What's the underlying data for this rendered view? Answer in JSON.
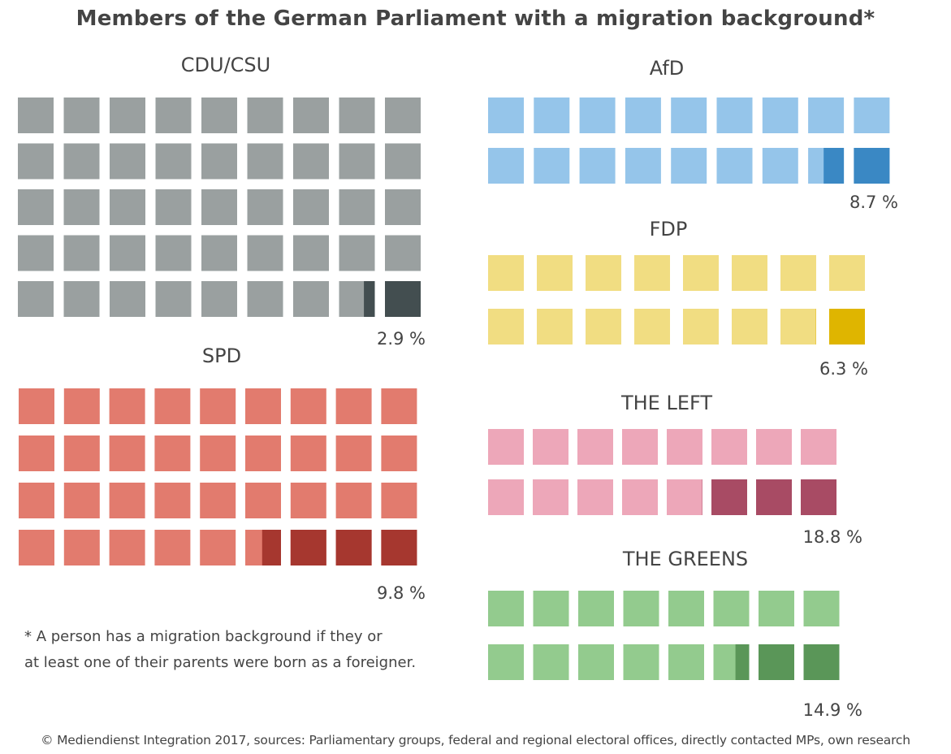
{
  "title": "Members of the German Parliament with a migration background*",
  "footnote": {
    "line1": "* A person has a migration background if they or",
    "line2": "at least one of their parents were born as a foreigner."
  },
  "source": "© Mediendienst Integration 2017, sources: Parliamentary groups, federal and regional electoral offices, directly contacted MPs, own research",
  "chart_data": {
    "type": "waffle",
    "title": "Members of the German Parliament with a migration background*",
    "unit": "%",
    "parties": [
      {
        "name": "CDU/CSU",
        "label": "CDU/CSU",
        "value": 2.9,
        "value_label": "2.9 %",
        "squares": 45,
        "columns": 9,
        "rows": 5,
        "base_color": "#9aa0a0",
        "highlight_color": "#434e50"
      },
      {
        "name": "SPD",
        "label": "SPD",
        "value": 9.8,
        "value_label": "9.8 %",
        "squares": 36,
        "columns": 9,
        "rows": 4,
        "base_color": "#e27b6e",
        "highlight_color": "#a6372f"
      },
      {
        "name": "AfD",
        "label": "AfD",
        "value": 8.7,
        "value_label": "8.7 %",
        "squares": 18,
        "columns": 9,
        "rows": 2,
        "base_color": "#95c5ea",
        "highlight_color": "#3a88c4"
      },
      {
        "name": "FDP",
        "label": "FDP",
        "value": 6.3,
        "value_label": "6.3 %",
        "squares": 16,
        "columns": 8,
        "rows": 2,
        "base_color": "#f1dd82",
        "highlight_color": "#dfb500"
      },
      {
        "name": "THE LEFT",
        "label": "THE LEFT",
        "value": 18.8,
        "value_label": "18.8 %",
        "squares": 16,
        "columns": 8,
        "rows": 2,
        "base_color": "#eda7b9",
        "highlight_color": "#a84b64"
      },
      {
        "name": "THE GREENS",
        "label": "THE GREENS",
        "value": 14.9,
        "value_label": "14.9 %",
        "squares": 16,
        "columns": 8,
        "rows": 2,
        "base_color": "#93cb8e",
        "highlight_color": "#5a9658"
      }
    ]
  }
}
